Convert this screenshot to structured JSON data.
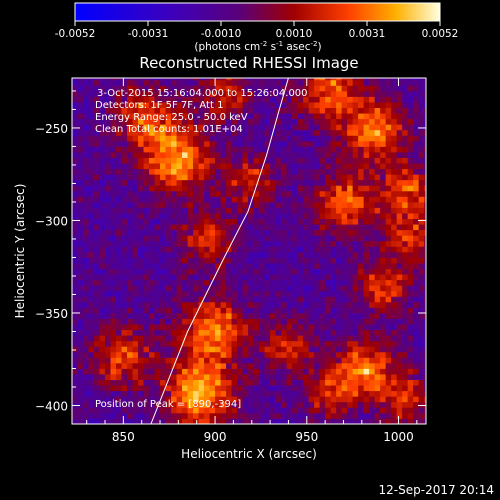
{
  "chart_data": {
    "type": "heatmap",
    "title": "Reconstructed RHESSI Image",
    "annotations": [
      "3-Oct-2015 15:16:04.000 to 15:26:04.000",
      "Detectors: 1F 5F 7F, Att 1",
      "Energy Range: 25.0 - 50.0 keV",
      "Clean    Total counts: 1.01E+04",
      "Position of Peak = [890,-394]"
    ],
    "xlabel": "Heliocentric X (arcsec)",
    "ylabel": "Heliocentric Y (arcsec)",
    "xlim": [
      822,
      1015
    ],
    "ylim": [
      -410,
      -223
    ],
    "xticks": [
      850,
      900,
      950,
      1000
    ],
    "yticks": [
      -250,
      -300,
      -350,
      -400
    ],
    "colorbar": {
      "min": -0.0052,
      "max": 0.0052,
      "ticks": [
        "-0.0052",
        "-0.0031",
        "-0.0010",
        "0.0010",
        "0.0031",
        "0.0052"
      ],
      "label_main": "(photons cm",
      "label_sup1": "-2",
      "label_mid1": " s",
      "label_sup2": "-1",
      "label_mid2": " asec",
      "label_sup3": "-2",
      "label_end": ")"
    },
    "sources": [
      {
        "x": 878,
        "y": -268,
        "peak": 0.0048,
        "sigma": 13
      },
      {
        "x": 918,
        "y": -280,
        "peak": 0.003,
        "sigma": 10
      },
      {
        "x": 860,
        "y": -245,
        "peak": 0.0035,
        "sigma": 12
      },
      {
        "x": 905,
        "y": -232,
        "peak": 0.003,
        "sigma": 10
      },
      {
        "x": 895,
        "y": -312,
        "peak": 0.0032,
        "sigma": 10
      },
      {
        "x": 960,
        "y": -230,
        "peak": 0.004,
        "sigma": 12
      },
      {
        "x": 985,
        "y": -252,
        "peak": 0.0045,
        "sigma": 12
      },
      {
        "x": 970,
        "y": -292,
        "peak": 0.004,
        "sigma": 12
      },
      {
        "x": 1003,
        "y": -285,
        "peak": 0.0035,
        "sigma": 10
      },
      {
        "x": 1005,
        "y": -310,
        "peak": 0.003,
        "sigma": 10
      },
      {
        "x": 990,
        "y": -337,
        "peak": 0.0035,
        "sigma": 10
      },
      {
        "x": 848,
        "y": -375,
        "peak": 0.0035,
        "sigma": 12
      },
      {
        "x": 898,
        "y": -360,
        "peak": 0.0048,
        "sigma": 12
      },
      {
        "x": 890,
        "y": -394,
        "peak": 0.0052,
        "sigma": 13
      },
      {
        "x": 938,
        "y": -370,
        "peak": 0.003,
        "sigma": 10
      },
      {
        "x": 960,
        "y": -395,
        "peak": 0.003,
        "sigma": 10
      },
      {
        "x": 980,
        "y": -382,
        "peak": 0.0045,
        "sigma": 11
      },
      {
        "x": 1003,
        "y": -397,
        "peak": 0.003,
        "sigma": 10
      }
    ],
    "limb_curve": [
      [
        865,
        -410
      ],
      [
        885,
        -360
      ],
      [
        905,
        -320
      ],
      [
        918,
        -295
      ],
      [
        928,
        -265
      ],
      [
        935,
        -240
      ],
      [
        940,
        -223
      ]
    ]
  },
  "footer": {
    "timestamp": "12-Sep-2017 20:14"
  }
}
